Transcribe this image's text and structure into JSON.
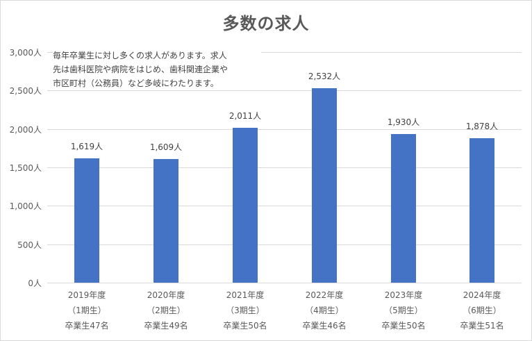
{
  "chart_data": {
    "type": "bar",
    "title": "多数の求人",
    "categories": [
      "2019年度（1期生）卒業生47名",
      "2020年度（2期生）卒業生49名",
      "2021年度（3期生）卒業生50名",
      "2022年度（4期生）卒業生46名",
      "2023年度（5期生）卒業生50名",
      "2024年度（6期生）卒業生51名"
    ],
    "category_lines": [
      {
        "year": "2019年度",
        "cohort": "（1期生）",
        "graduates": "卒業生47名"
      },
      {
        "year": "2020年度",
        "cohort": "（2期生）",
        "graduates": "卒業生49名"
      },
      {
        "year": "2021年度",
        "cohort": "（3期生）",
        "graduates": "卒業生50名"
      },
      {
        "year": "2022年度",
        "cohort": "（4期生）",
        "graduates": "卒業生46名"
      },
      {
        "year": "2023年度",
        "cohort": "（5期生）",
        "graduates": "卒業生50名"
      },
      {
        "year": "2024年度",
        "cohort": "（6期生）",
        "graduates": "卒業生51名"
      }
    ],
    "values": [
      1619,
      1609,
      2011,
      2532,
      1930,
      1878
    ],
    "value_labels": [
      "1,619人",
      "1,609人",
      "2,011人",
      "2,532人",
      "1,930人",
      "1,878人"
    ],
    "xlabel": "",
    "ylabel": "",
    "ylim": [
      0,
      3000
    ],
    "yticks": [
      "0人",
      "500人",
      "1,000人",
      "1,500人",
      "2,000人",
      "2,500人",
      "3,000人"
    ],
    "grid": true,
    "legend": null,
    "bar_color": "#4472c4",
    "annotation": "毎年卒業生に対し多くの求人があります。求人先は歯科医院や病院をはじめ、歯科関連企業や市区町村（公務員）など多岐にわたります。"
  },
  "annotation_lines": [
    "毎年卒業生に対し多くの求人があります。求人",
    "先は歯科医院や病院をはじめ、歯科関連企業や",
    "市区町村（公務員）など多岐にわたります。"
  ]
}
